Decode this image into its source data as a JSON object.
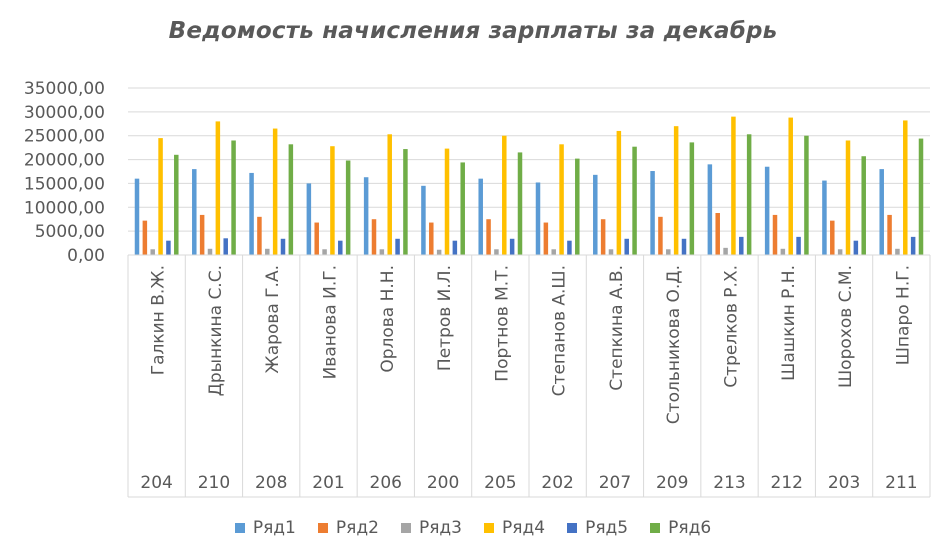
{
  "chart_data": {
    "type": "bar",
    "title": "Ведомость начисления зарплаты за декабрь",
    "xlabel": "",
    "ylabel": "",
    "ylim": [
      0,
      35000
    ],
    "yticks": [
      "0,00",
      "5000,00",
      "10000,00",
      "15000,00",
      "20000,00",
      "25000,00",
      "30000,00",
      "35000,00"
    ],
    "grid": true,
    "legend_position": "bottom",
    "categories": [
      {
        "name": "Галкин В.Ж.",
        "code": "204"
      },
      {
        "name": "Дрынкина С.С.",
        "code": "210"
      },
      {
        "name": "Жарова Г.А.",
        "code": "208"
      },
      {
        "name": "Иванова И.Г.",
        "code": "201"
      },
      {
        "name": "Орлова Н.Н.",
        "code": "206"
      },
      {
        "name": "Петров И.Л.",
        "code": "200"
      },
      {
        "name": "Портнов М.Т.",
        "code": "205"
      },
      {
        "name": "Степанов А.Ш.",
        "code": "202"
      },
      {
        "name": "Степкина А.В.",
        "code": "207"
      },
      {
        "name": "Стольникова О.Д.",
        "code": "209"
      },
      {
        "name": "Стрелков Р.Х.",
        "code": "213"
      },
      {
        "name": "Шашкин Р.Н.",
        "code": "212"
      },
      {
        "name": "Шорохов С.М.",
        "code": "203"
      },
      {
        "name": "Шпаро Н.Г.",
        "code": "211"
      }
    ],
    "series": [
      {
        "name": "Ряд1",
        "color": "#5B9BD5",
        "values": [
          16000,
          18000,
          17200,
          15000,
          16300,
          14500,
          16000,
          15200,
          16800,
          17600,
          19000,
          18500,
          15600,
          18000
        ]
      },
      {
        "name": "Ряд2",
        "color": "#ED7D31",
        "values": [
          7200,
          8400,
          8000,
          6800,
          7500,
          6800,
          7500,
          6800,
          7500,
          8000,
          8800,
          8400,
          7200,
          8400
        ]
      },
      {
        "name": "Ряд3",
        "color": "#A5A5A5",
        "values": [
          1200,
          1300,
          1300,
          1200,
          1200,
          1100,
          1200,
          1200,
          1200,
          1200,
          1500,
          1300,
          1200,
          1300
        ]
      },
      {
        "name": "Ряд4",
        "color": "#FFC000",
        "values": [
          24500,
          28000,
          26500,
          22800,
          25300,
          22300,
          25000,
          23200,
          26000,
          27000,
          29000,
          28800,
          24000,
          28200
        ]
      },
      {
        "name": "Ряд5",
        "color": "#4472C4",
        "values": [
          3000,
          3500,
          3400,
          3000,
          3400,
          3000,
          3400,
          3000,
          3400,
          3400,
          3800,
          3800,
          3000,
          3800
        ]
      },
      {
        "name": "Ряд6",
        "color": "#70AD47",
        "values": [
          21000,
          24000,
          23200,
          19800,
          22200,
          19400,
          21500,
          20200,
          22700,
          23600,
          25300,
          25000,
          20700,
          24400
        ]
      }
    ]
  }
}
